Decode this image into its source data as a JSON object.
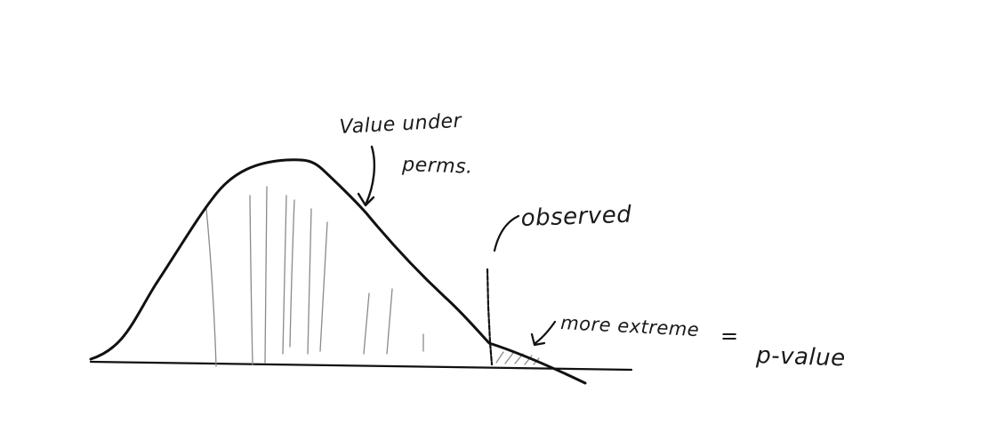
{
  "annotations": {
    "distribution_label_line1": "Value under",
    "distribution_label_line2": "perms.",
    "observed_label": "observed",
    "tail_label_part1": "more extreme",
    "tail_label_equals": "=",
    "tail_label_part2": "p-value"
  },
  "colors": {
    "ink": "#111111",
    "hatching": "#8a8a8a",
    "background": "#ffffff"
  }
}
